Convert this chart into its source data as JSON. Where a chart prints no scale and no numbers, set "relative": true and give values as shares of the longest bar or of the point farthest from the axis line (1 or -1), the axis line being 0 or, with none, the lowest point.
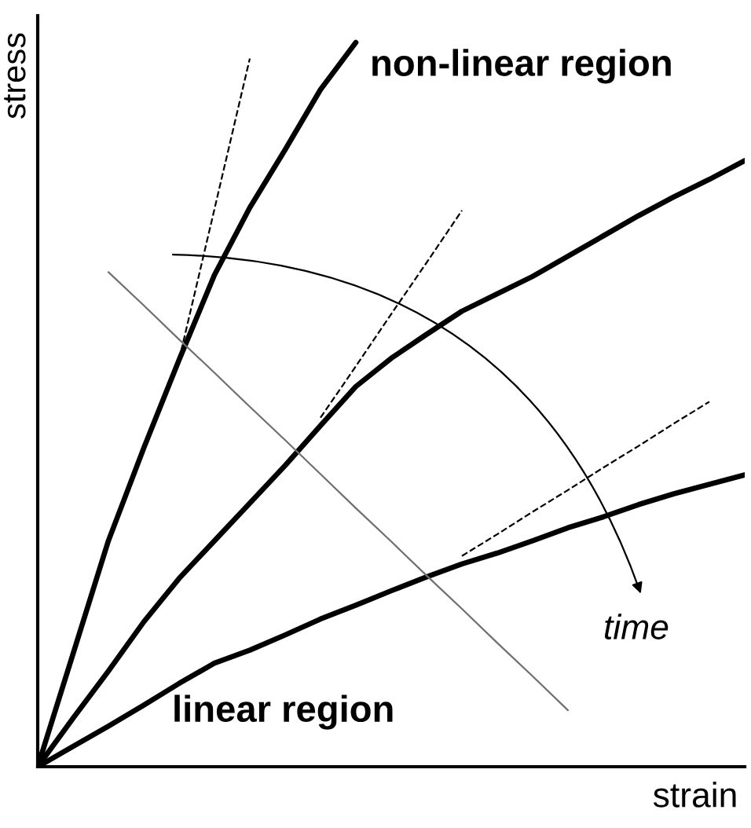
{
  "chart_data": {
    "type": "line",
    "relative": true,
    "xlabel": "strain",
    "ylabel": "stress",
    "marker": "none",
    "line_style": "solid",
    "annotations": [
      "non-linear region",
      "linear region",
      "time"
    ],
    "categories": [
      null,
      null,
      null,
      null,
      null,
      null,
      null,
      null,
      null,
      null,
      null,
      null,
      null,
      null,
      null,
      null,
      null,
      null,
      null,
      null,
      null
    ],
    "series": [
      {
        "color": "#000000",
        "values": [
          0,
          0.156,
          0.312,
          0.44,
          0.562,
          0.679,
          0.772,
          0.852,
          0.935,
          1.0,
          null,
          null,
          null,
          null,
          null,
          null,
          null,
          null,
          null,
          null,
          null
        ]
      },
      {
        "color": "#000000",
        "values": [
          0,
          0.067,
          0.132,
          0.2,
          0.26,
          0.312,
          0.364,
          0.416,
          0.471,
          0.525,
          0.564,
          0.597,
          0.629,
          0.653,
          0.677,
          0.705,
          0.733,
          0.761,
          0.787,
          0.811,
          0.837
        ]
      },
      {
        "color": "#000000",
        "values": [
          0,
          0.028,
          0.056,
          0.085,
          0.115,
          0.143,
          0.161,
          0.182,
          0.204,
          0.223,
          0.243,
          0.262,
          0.28,
          0.295,
          0.312,
          0.33,
          0.345,
          0.362,
          0.377,
          0.39,
          0.403
        ]
      },
      {
        "color": "#000000",
        "line_style": "dashed",
        "values": [
          null,
          null,
          null,
          null,
          0.562,
          0.77,
          0.978,
          null,
          null,
          null,
          null,
          null,
          null,
          null,
          null,
          null,
          null,
          null,
          null,
          null,
          null
        ]
      },
      {
        "color": "#000000",
        "line_style": "dashed",
        "values": [
          null,
          null,
          null,
          null,
          null,
          null,
          null,
          null,
          0.482,
          0.553,
          0.625,
          0.696,
          0.768,
          null,
          null,
          null,
          null,
          null,
          null,
          null,
          null
        ]
      },
      {
        "color": "#000000",
        "line_style": "dashed",
        "values": [
          null,
          null,
          null,
          null,
          null,
          null,
          null,
          null,
          null,
          null,
          null,
          null,
          0.291,
          0.321,
          0.352,
          0.382,
          0.413,
          0.443,
          0.474,
          0.504,
          null
        ]
      },
      {
        "color": "#707070",
        "values": [
          null,
          null,
          0.683,
          0.637,
          0.59,
          0.544,
          0.497,
          0.451,
          0.404,
          0.357,
          0.311,
          0.264,
          0.218,
          0.171,
          0.125,
          0.078,
          null,
          null,
          null,
          null,
          null
        ]
      }
    ]
  }
}
